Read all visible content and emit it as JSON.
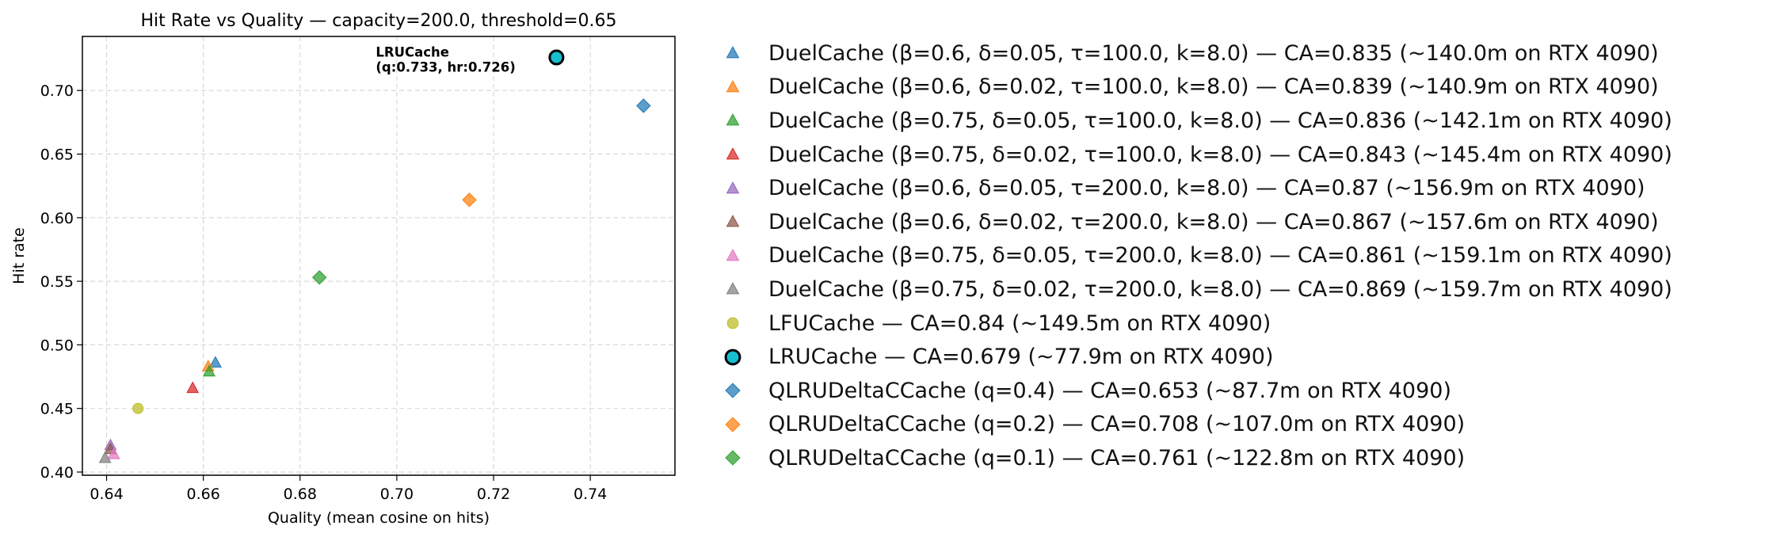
{
  "chart_data": {
    "type": "scatter",
    "title": "Hit Rate vs Quality — capacity=200.0, threshold=0.65",
    "xlabel": "Quality (mean cosine on hits)",
    "ylabel": "Hit rate",
    "xlim": [
      0.635,
      0.7575
    ],
    "ylim": [
      0.3975,
      0.7425
    ],
    "x_ticks": [
      0.64,
      0.66,
      0.68,
      0.7,
      0.72,
      0.74
    ],
    "x_tick_labels": [
      "0.64",
      "0.66",
      "0.68",
      "0.70",
      "0.72",
      "0.74"
    ],
    "y_ticks": [
      0.4,
      0.45,
      0.5,
      0.55,
      0.6,
      0.65,
      0.7
    ],
    "y_tick_labels": [
      "0.40",
      "0.45",
      "0.50",
      "0.55",
      "0.60",
      "0.65",
      "0.70"
    ],
    "grid": true,
    "legend_position": "outside-right",
    "series": [
      {
        "name": "DuelCache (β=0.6, δ=0.05, τ=100.0, k=8.0) — CA=0.835 (~140.0m on RTX 4090)",
        "marker": "triangle",
        "color": "#1f77b4",
        "x": 0.6625,
        "y": 0.486
      },
      {
        "name": "DuelCache (β=0.6, δ=0.02, τ=100.0, k=8.0) — CA=0.839 (~140.9m on RTX 4090)",
        "marker": "triangle",
        "color": "#ff7f0e",
        "x": 0.661,
        "y": 0.483
      },
      {
        "name": "DuelCache (β=0.75, δ=0.05, τ=100.0, k=8.0) — CA=0.836 (~142.1m on RTX 4090)",
        "marker": "triangle",
        "color": "#2ca02c",
        "x": 0.6612,
        "y": 0.479
      },
      {
        "name": "DuelCache (β=0.75, δ=0.02, τ=100.0, k=8.0) — CA=0.843 (~145.4m on RTX 4090)",
        "marker": "triangle",
        "color": "#d62728",
        "x": 0.6578,
        "y": 0.466
      },
      {
        "name": "DuelCache (β=0.6, δ=0.05, τ=200.0, k=8.0) — CA=0.87 (~156.9m on RTX 4090)",
        "marker": "triangle",
        "color": "#9467bd",
        "x": 0.6408,
        "y": 0.421
      },
      {
        "name": "DuelCache (β=0.6, δ=0.02, τ=200.0, k=8.0) — CA=0.867 (~157.6m on RTX 4090)",
        "marker": "triangle",
        "color": "#8c564b",
        "x": 0.6408,
        "y": 0.418
      },
      {
        "name": "DuelCache (β=0.75, δ=0.05, τ=200.0, k=8.0) — CA=0.861 (~159.1m on RTX 4090)",
        "marker": "triangle",
        "color": "#e377c2",
        "x": 0.6415,
        "y": 0.414
      },
      {
        "name": "DuelCache (β=0.75, δ=0.02, τ=200.0, k=8.0) — CA=0.869 (~159.7m on RTX 4090)",
        "marker": "triangle",
        "color": "#7f7f7f",
        "x": 0.6397,
        "y": 0.411
      },
      {
        "name": "LFUCache — CA=0.84 (~149.5m on RTX 4090)",
        "marker": "circle",
        "color": "#bcbd22",
        "x": 0.6465,
        "y": 0.45
      },
      {
        "name": "LRUCache — CA=0.679 (~77.9m on RTX 4090)",
        "marker": "circle-large",
        "color": "#17becf",
        "x": 0.733,
        "y": 0.726
      },
      {
        "name": "QLRUDeltaCCache (q=0.4) — CA=0.653 (~87.7m on RTX 4090)",
        "marker": "diamond",
        "color": "#1f77b4",
        "x": 0.751,
        "y": 0.688
      },
      {
        "name": "QLRUDeltaCCache (q=0.2) — CA=0.708 (~107.0m on RTX 4090)",
        "marker": "diamond",
        "color": "#ff7f0e",
        "x": 0.715,
        "y": 0.614
      },
      {
        "name": "QLRUDeltaCCache (q=0.1) — CA=0.761 (~122.8m on RTX 4090)",
        "marker": "diamond",
        "color": "#2ca02c",
        "x": 0.684,
        "y": 0.553
      }
    ],
    "annotation": {
      "line1": "LRUCache",
      "line2": "(q:0.733, hr:0.726)"
    }
  }
}
